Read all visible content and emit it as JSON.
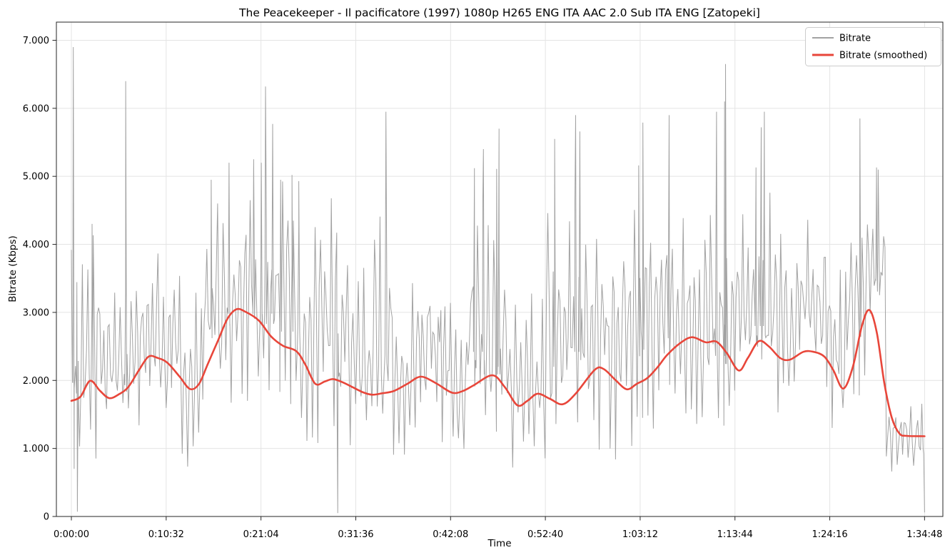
{
  "title": {
    "text": "The Peacekeeper - Il pacificatore (1997) 1080p H265 ENG ITA AAC 2.0 Sub ITA ENG [Zatopeki]"
  },
  "axes": {
    "x_label": "Time",
    "y_label": "Bitrate (Kbps)",
    "x_ticks": [
      {
        "t": 0,
        "label": "0:00:00"
      },
      {
        "t": 632,
        "label": "0:10:32"
      },
      {
        "t": 1264,
        "label": "0:21:04"
      },
      {
        "t": 1896,
        "label": "0:31:36"
      },
      {
        "t": 2528,
        "label": "0:42:08"
      },
      {
        "t": 3160,
        "label": "0:52:40"
      },
      {
        "t": 3792,
        "label": "1:03:12"
      },
      {
        "t": 4424,
        "label": "1:13:44"
      },
      {
        "t": 5056,
        "label": "1:24:16"
      },
      {
        "t": 5688,
        "label": "1:34:48"
      }
    ],
    "y_ticks": [
      {
        "v": 0,
        "label": "0"
      },
      {
        "v": 1000,
        "label": "1.000"
      },
      {
        "v": 2000,
        "label": "2.000"
      },
      {
        "v": 3000,
        "label": "3.000"
      },
      {
        "v": 4000,
        "label": "4.000"
      },
      {
        "v": 5000,
        "label": "5.000"
      },
      {
        "v": 6000,
        "label": "6.000"
      },
      {
        "v": 7000,
        "label": "7.000"
      }
    ]
  },
  "legend": {
    "items": [
      {
        "label": "Bitrate",
        "color": "#a2a2a2"
      },
      {
        "label": "Bitrate (smoothed)",
        "color": "#e8463a"
      }
    ]
  },
  "colors": {
    "raw_line": "#a2a2a2",
    "smoothed_line": "#e8463a",
    "grid": "#e4e4e4",
    "spine": "#262626",
    "legend_border": "#cccccc",
    "background": "#ffffff"
  },
  "chart_data": {
    "type": "line",
    "title": "The Peacekeeper - Il pacificatore (1997) 1080p H265 ENG ITA AAC 2.0 Sub ITA ENG [Zatopeki]",
    "xlabel": "Time",
    "ylabel": "Bitrate (Kbps)",
    "x_unit": "seconds",
    "duration_seconds": 5688,
    "xlim_seconds": [
      -100,
      5810
    ],
    "ylim": [
      0,
      7267
    ],
    "grid": true,
    "legend_position": "top-right",
    "series": [
      {
        "name": "Bitrate",
        "style": "raw-noisy",
        "color": "#a2a2a2",
        "envelope_comment": "per-interval [t_start,t_end,low,high] Kbps band of the noisy raw bitrate",
        "envelope": [
          [
            0,
            128,
            600,
            4050
          ],
          [
            128,
            252,
            650,
            4300
          ],
          [
            252,
            380,
            950,
            3400
          ],
          [
            380,
            504,
            1200,
            3800
          ],
          [
            504,
            632,
            1200,
            4050
          ],
          [
            632,
            757,
            900,
            4050
          ],
          [
            757,
            885,
            700,
            3400
          ],
          [
            885,
            1011,
            1300,
            4950
          ],
          [
            1011,
            1138,
            1500,
            5200
          ],
          [
            1138,
            1264,
            1600,
            5250
          ],
          [
            1264,
            1390,
            1500,
            5200
          ],
          [
            1390,
            1516,
            1400,
            5050
          ],
          [
            1516,
            1643,
            1100,
            4400
          ],
          [
            1643,
            1769,
            1000,
            4800
          ],
          [
            1769,
            1895,
            800,
            4400
          ],
          [
            1895,
            2021,
            900,
            3700
          ],
          [
            2021,
            2148,
            900,
            4600
          ],
          [
            2148,
            2274,
            800,
            2900
          ],
          [
            2274,
            2400,
            1000,
            4000
          ],
          [
            2400,
            2527,
            800,
            4000
          ],
          [
            2527,
            2653,
            700,
            3300
          ],
          [
            2653,
            2779,
            900,
            4700
          ],
          [
            2779,
            2906,
            800,
            4300
          ],
          [
            2906,
            3032,
            600,
            3500
          ],
          [
            3032,
            3158,
            700,
            3500
          ],
          [
            3158,
            3285,
            600,
            4600
          ],
          [
            3285,
            3411,
            900,
            4700
          ],
          [
            3411,
            3537,
            900,
            4400
          ],
          [
            3537,
            3664,
            800,
            4400
          ],
          [
            3664,
            3790,
            1000,
            4700
          ],
          [
            3790,
            3916,
            1100,
            4800
          ],
          [
            3916,
            4043,
            1100,
            4900
          ],
          [
            4043,
            4169,
            1300,
            4650
          ],
          [
            4169,
            4296,
            1100,
            4700
          ],
          [
            4296,
            4422,
            1000,
            4400
          ],
          [
            4422,
            4548,
            1300,
            4700
          ],
          [
            4548,
            4675,
            1400,
            4900
          ],
          [
            4675,
            4801,
            1200,
            4800
          ],
          [
            4801,
            4927,
            1300,
            4950
          ],
          [
            4927,
            5054,
            1200,
            4950
          ],
          [
            5054,
            5180,
            1100,
            3900
          ],
          [
            5180,
            5307,
            1500,
            4700
          ],
          [
            5307,
            5433,
            2400,
            5100
          ],
          [
            5433,
            5560,
            500,
            1900
          ],
          [
            5560,
            5688,
            400,
            1900
          ]
        ],
        "spikes": [
          [
            13,
            6900
          ],
          [
            138,
            4300
          ],
          [
            362,
            6400
          ],
          [
            932,
            4950
          ],
          [
            1051,
            5200
          ],
          [
            1215,
            5250
          ],
          [
            1266,
            5200
          ],
          [
            1294,
            6320
          ],
          [
            1342,
            5770
          ],
          [
            1395,
            4950
          ],
          [
            1471,
            5020
          ],
          [
            1516,
            4930
          ],
          [
            2097,
            5950
          ],
          [
            2687,
            5120
          ],
          [
            2747,
            5400
          ],
          [
            2835,
            5110
          ],
          [
            2851,
            5700
          ],
          [
            3222,
            5550
          ],
          [
            3362,
            5900
          ],
          [
            3390,
            5660
          ],
          [
            3782,
            5160
          ],
          [
            3810,
            5790
          ],
          [
            3985,
            5900
          ],
          [
            4301,
            5950
          ],
          [
            4355,
            6100
          ],
          [
            4361,
            6650
          ],
          [
            4564,
            5130
          ],
          [
            4599,
            5720
          ],
          [
            4620,
            5950
          ],
          [
            5257,
            5850
          ],
          [
            5368,
            5130
          ]
        ],
        "dips": [
          [
            40,
            70
          ],
          [
            1776,
            50
          ],
          [
            5688,
            60
          ]
        ]
      },
      {
        "name": "Bitrate (smoothed)",
        "style": "smooth",
        "color": "#e8463a",
        "points": [
          [
            0,
            1700
          ],
          [
            60,
            1760
          ],
          [
            125,
            1995
          ],
          [
            190,
            1850
          ],
          [
            252,
            1740
          ],
          [
            320,
            1800
          ],
          [
            380,
            1905
          ],
          [
            450,
            2150
          ],
          [
            514,
            2350
          ],
          [
            575,
            2330
          ],
          [
            640,
            2260
          ],
          [
            720,
            2060
          ],
          [
            790,
            1875
          ],
          [
            850,
            1945
          ],
          [
            910,
            2245
          ],
          [
            980,
            2600
          ],
          [
            1040,
            2905
          ],
          [
            1100,
            3045
          ],
          [
            1160,
            3010
          ],
          [
            1250,
            2880
          ],
          [
            1330,
            2650
          ],
          [
            1410,
            2510
          ],
          [
            1500,
            2430
          ],
          [
            1560,
            2230
          ],
          [
            1626,
            1950
          ],
          [
            1690,
            1985
          ],
          [
            1745,
            2020
          ],
          [
            1810,
            1970
          ],
          [
            1880,
            1895
          ],
          [
            1950,
            1820
          ],
          [
            2006,
            1790
          ],
          [
            2070,
            1810
          ],
          [
            2150,
            1845
          ],
          [
            2240,
            1950
          ],
          [
            2330,
            2055
          ],
          [
            2430,
            1960
          ],
          [
            2537,
            1820
          ],
          [
            2610,
            1845
          ],
          [
            2680,
            1925
          ],
          [
            2807,
            2075
          ],
          [
            2890,
            1900
          ],
          [
            2973,
            1635
          ],
          [
            3040,
            1700
          ],
          [
            3108,
            1805
          ],
          [
            3190,
            1730
          ],
          [
            3275,
            1650
          ],
          [
            3360,
            1800
          ],
          [
            3489,
            2155
          ],
          [
            3550,
            2165
          ],
          [
            3630,
            2000
          ],
          [
            3703,
            1870
          ],
          [
            3770,
            1950
          ],
          [
            3840,
            2035
          ],
          [
            3910,
            2200
          ],
          [
            3970,
            2370
          ],
          [
            4060,
            2550
          ],
          [
            4139,
            2635
          ],
          [
            4230,
            2560
          ],
          [
            4300,
            2570
          ],
          [
            4370,
            2400
          ],
          [
            4449,
            2145
          ],
          [
            4510,
            2330
          ],
          [
            4582,
            2575
          ],
          [
            4650,
            2500
          ],
          [
            4725,
            2330
          ],
          [
            4790,
            2305
          ],
          [
            4880,
            2420
          ],
          [
            4948,
            2420
          ],
          [
            5020,
            2350
          ],
          [
            5080,
            2150
          ],
          [
            5146,
            1880
          ],
          [
            5210,
            2200
          ],
          [
            5270,
            2800
          ],
          [
            5320,
            3035
          ],
          [
            5370,
            2700
          ],
          [
            5420,
            1960
          ],
          [
            5470,
            1450
          ],
          [
            5520,
            1220
          ],
          [
            5570,
            1185
          ],
          [
            5688,
            1180
          ]
        ]
      }
    ]
  }
}
